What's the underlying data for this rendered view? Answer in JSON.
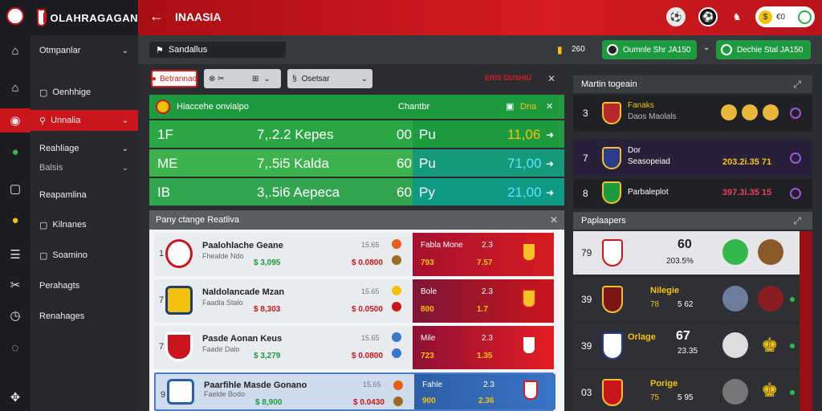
{
  "brand": {
    "name": "OLAHRAGAGAN"
  },
  "header": {
    "title": "INAASIA",
    "back_icon": "arrow-left-icon",
    "user": {
      "coins": "€0"
    }
  },
  "sidebar": {
    "items": [
      {
        "label": "Otmpanlar",
        "chev": "⌄",
        "icon": "home-icon"
      },
      {
        "label": "Oenhhige",
        "icon": "bank-icon"
      },
      {
        "label": "Unnalia",
        "chev": "⌄",
        "icon": "target-icon",
        "active": true
      },
      {
        "label": "Reahliage",
        "chev": "⌄",
        "icon": "sport-icon"
      },
      {
        "label": "Balsis",
        "chev": "⌄",
        "icon": "box-icon"
      },
      {
        "label": "Reapamlina",
        "icon": "globe-icon"
      },
      {
        "label": "Kilnanes",
        "icon": "list-icon"
      },
      {
        "label": "Soamino",
        "icon": "settings-icon"
      },
      {
        "label": "Perahagts",
        "icon": "clock-icon"
      },
      {
        "label": "Renahages",
        "icon": "chat-icon"
      }
    ]
  },
  "subbar": {
    "crumb": "Sandallus",
    "coins": "260",
    "btn1": "Oumnle Shr JA150",
    "btn2": "Dechie Stal JA150"
  },
  "filters": {
    "red": "Betrannao",
    "seg1": "⊗ ✂",
    "seg2": "⊞",
    "select": "Osetsar",
    "alert": "ERIS DUSHIU"
  },
  "green": {
    "head": {
      "title": "Hiaccehe onvialpo",
      "mid": "Chantbr",
      "right": "Dna"
    },
    "rows": [
      {
        "code": "1F",
        "val": "7,.2.2 Kepes",
        "pts": "00",
        "p": "Pu",
        "odd": "11,06"
      },
      {
        "code": "ME",
        "val": "7,.5i5 Kalda",
        "pts": "60",
        "p": "Pu",
        "odd": "71,00"
      },
      {
        "code": "IB",
        "val": "3,.5i6 Aepeca",
        "pts": "60",
        "p": "Py",
        "odd": "21,00"
      }
    ]
  },
  "board": {
    "title": "Pany ctange Reatliva",
    "rows": [
      {
        "num": "1",
        "name": "Paalohlache Geane",
        "sub": "Fhealde Ndo",
        "g": "$ 3,095",
        "small": "15.65",
        "r": "$ 0.0800",
        "o1": "Fabla Mone",
        "o2": "2.3",
        "o3": "793",
        "o4": "7.57"
      },
      {
        "num": "7",
        "name": "Naldolancade Mzan",
        "sub": "Faadla Stalo",
        "g": "$ 8,303",
        "small": "15.65",
        "r": "$ 0.0500",
        "o1": "Bole",
        "o2": "2.3",
        "o3": "800",
        "o4": "1.7"
      },
      {
        "num": "7",
        "name": "Pasde Aonan Keus",
        "sub": "Faade Dalo",
        "g": "$ 3,279",
        "small": "15.65",
        "r": "$ 0.0800",
        "o1": "Mile",
        "o2": "2.3",
        "o3": "723",
        "o4": "1.35"
      },
      {
        "num": "9",
        "name": "Paarfihle Masde Gonano",
        "sub": "Faelde Bodo",
        "g": "$ 8,900",
        "small": "15.65",
        "r": "$ 0.0430",
        "o1": "Fahle",
        "o2": "2.3",
        "o3": "900",
        "o4": "2.36"
      }
    ]
  },
  "rp1": {
    "title": "Martin togeain",
    "rows": [
      {
        "n": "3",
        "t1": "Fanaks",
        "t2": "Daos Maolals"
      },
      {
        "n": "7",
        "t1": "Dor",
        "t2": "Seasopeiad",
        "right": "203.2i.35 71"
      },
      {
        "n": "8",
        "t1": "Parbaleplot",
        "right": "397.3i.35 15"
      }
    ]
  },
  "rp2": {
    "title": "Paplaapers",
    "rows": [
      {
        "n": "79",
        "big": "60",
        "t2": "203.5%"
      },
      {
        "n": "39",
        "t1": "Nilegie",
        "t2": "78",
        "t3": "5 62"
      },
      {
        "n": "39",
        "t1": "Orlage",
        "big": "67",
        "t3": "23.35"
      },
      {
        "n": "03",
        "t1": "Porige",
        "t2": "75",
        "t3": "5 95"
      }
    ]
  }
}
